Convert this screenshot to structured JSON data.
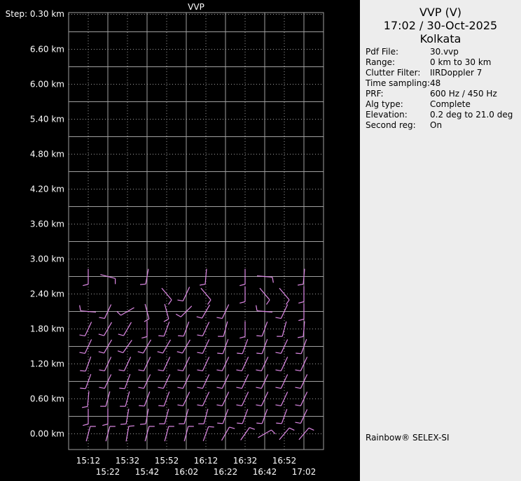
{
  "chart_data": {
    "type": "wind-barb",
    "title": "VVP",
    "y_step_label": "Step: 0.30 km",
    "y_tick_labels": [
      "6.60 km",
      "6.00 km",
      "5.40 km",
      "4.80 km",
      "4.20 km",
      "3.60 km",
      "3.00 km",
      "2.40 km",
      "1.80 km",
      "1.20 km",
      "0.60 km",
      "0.00 km"
    ],
    "y_ticks_km": [
      6.6,
      6.0,
      5.4,
      4.8,
      4.2,
      3.6,
      3.0,
      2.4,
      1.8,
      1.2,
      0.6,
      0.0
    ],
    "ylim_km": [
      -0.27,
      7.23
    ],
    "x_tick_labels": [
      "15:12",
      "15:22",
      "15:32",
      "15:42",
      "15:52",
      "16:02",
      "16:12",
      "16:22",
      "16:32",
      "16:42",
      "16:52",
      "17:02"
    ],
    "heights_km": [
      0.0,
      0.3,
      0.6,
      0.9,
      1.2,
      1.5,
      1.8,
      2.1,
      2.4,
      2.7
    ],
    "wind_direction_deg": [
      [
        15,
        15,
        10,
        15,
        15,
        15,
        20,
        30,
        35,
        60,
        40,
        40
      ],
      [
        180,
        180,
        190,
        190,
        195,
        195,
        195,
        200,
        200,
        200,
        200,
        205
      ],
      [
        185,
        195,
        195,
        200,
        200,
        205,
        205,
        205,
        205,
        205,
        205,
        205
      ],
      [
        200,
        205,
        200,
        205,
        205,
        205,
        205,
        205,
        205,
        205,
        205,
        205
      ],
      [
        200,
        205,
        205,
        205,
        205,
        205,
        205,
        205,
        205,
        205,
        205,
        205
      ],
      [
        205,
        210,
        215,
        210,
        210,
        210,
        205,
        200,
        200,
        200,
        205,
        200
      ],
      [
        205,
        210,
        210,
        180,
        200,
        200,
        205,
        195,
        180,
        200,
        195,
        185
      ],
      [
        275,
        205,
        240,
        165,
        165,
        225,
        210,
        205,
        null,
        275,
        205,
        180
      ],
      [
        null,
        null,
        null,
        null,
        140,
        205,
        140,
        null,
        180,
        140,
        140,
        180
      ],
      [
        180,
        105,
        null,
        190,
        null,
        null,
        185,
        null,
        180,
        95,
        null,
        185
      ]
    ],
    "colors": {
      "barb": "#e08ae8",
      "grid": "#a0a0a0",
      "background": "#000000"
    },
    "grid": true
  },
  "panel": {
    "title": "VVP (V)",
    "datetime": "17:02 / 30-Oct-2025",
    "site": "Kolkata",
    "rows": [
      {
        "label": "Pdf File:",
        "value": "30.vvp"
      },
      {
        "label": "Range:",
        "value": "0 km to 30 km"
      },
      {
        "label": "Clutter Filter:",
        "value": "IIRDoppler 7"
      },
      {
        "label": "Time sampling:",
        "value": "48"
      },
      {
        "label": "PRF:",
        "value": "600 Hz / 450 Hz"
      },
      {
        "label": "Alg type:",
        "value": "Complete"
      },
      {
        "label": "Elevation:",
        "value": "0.2 deg to 21.0 deg"
      },
      {
        "label": "Second reg:",
        "value": "On"
      }
    ],
    "credit": "Rainbow® SELEX-SI"
  }
}
